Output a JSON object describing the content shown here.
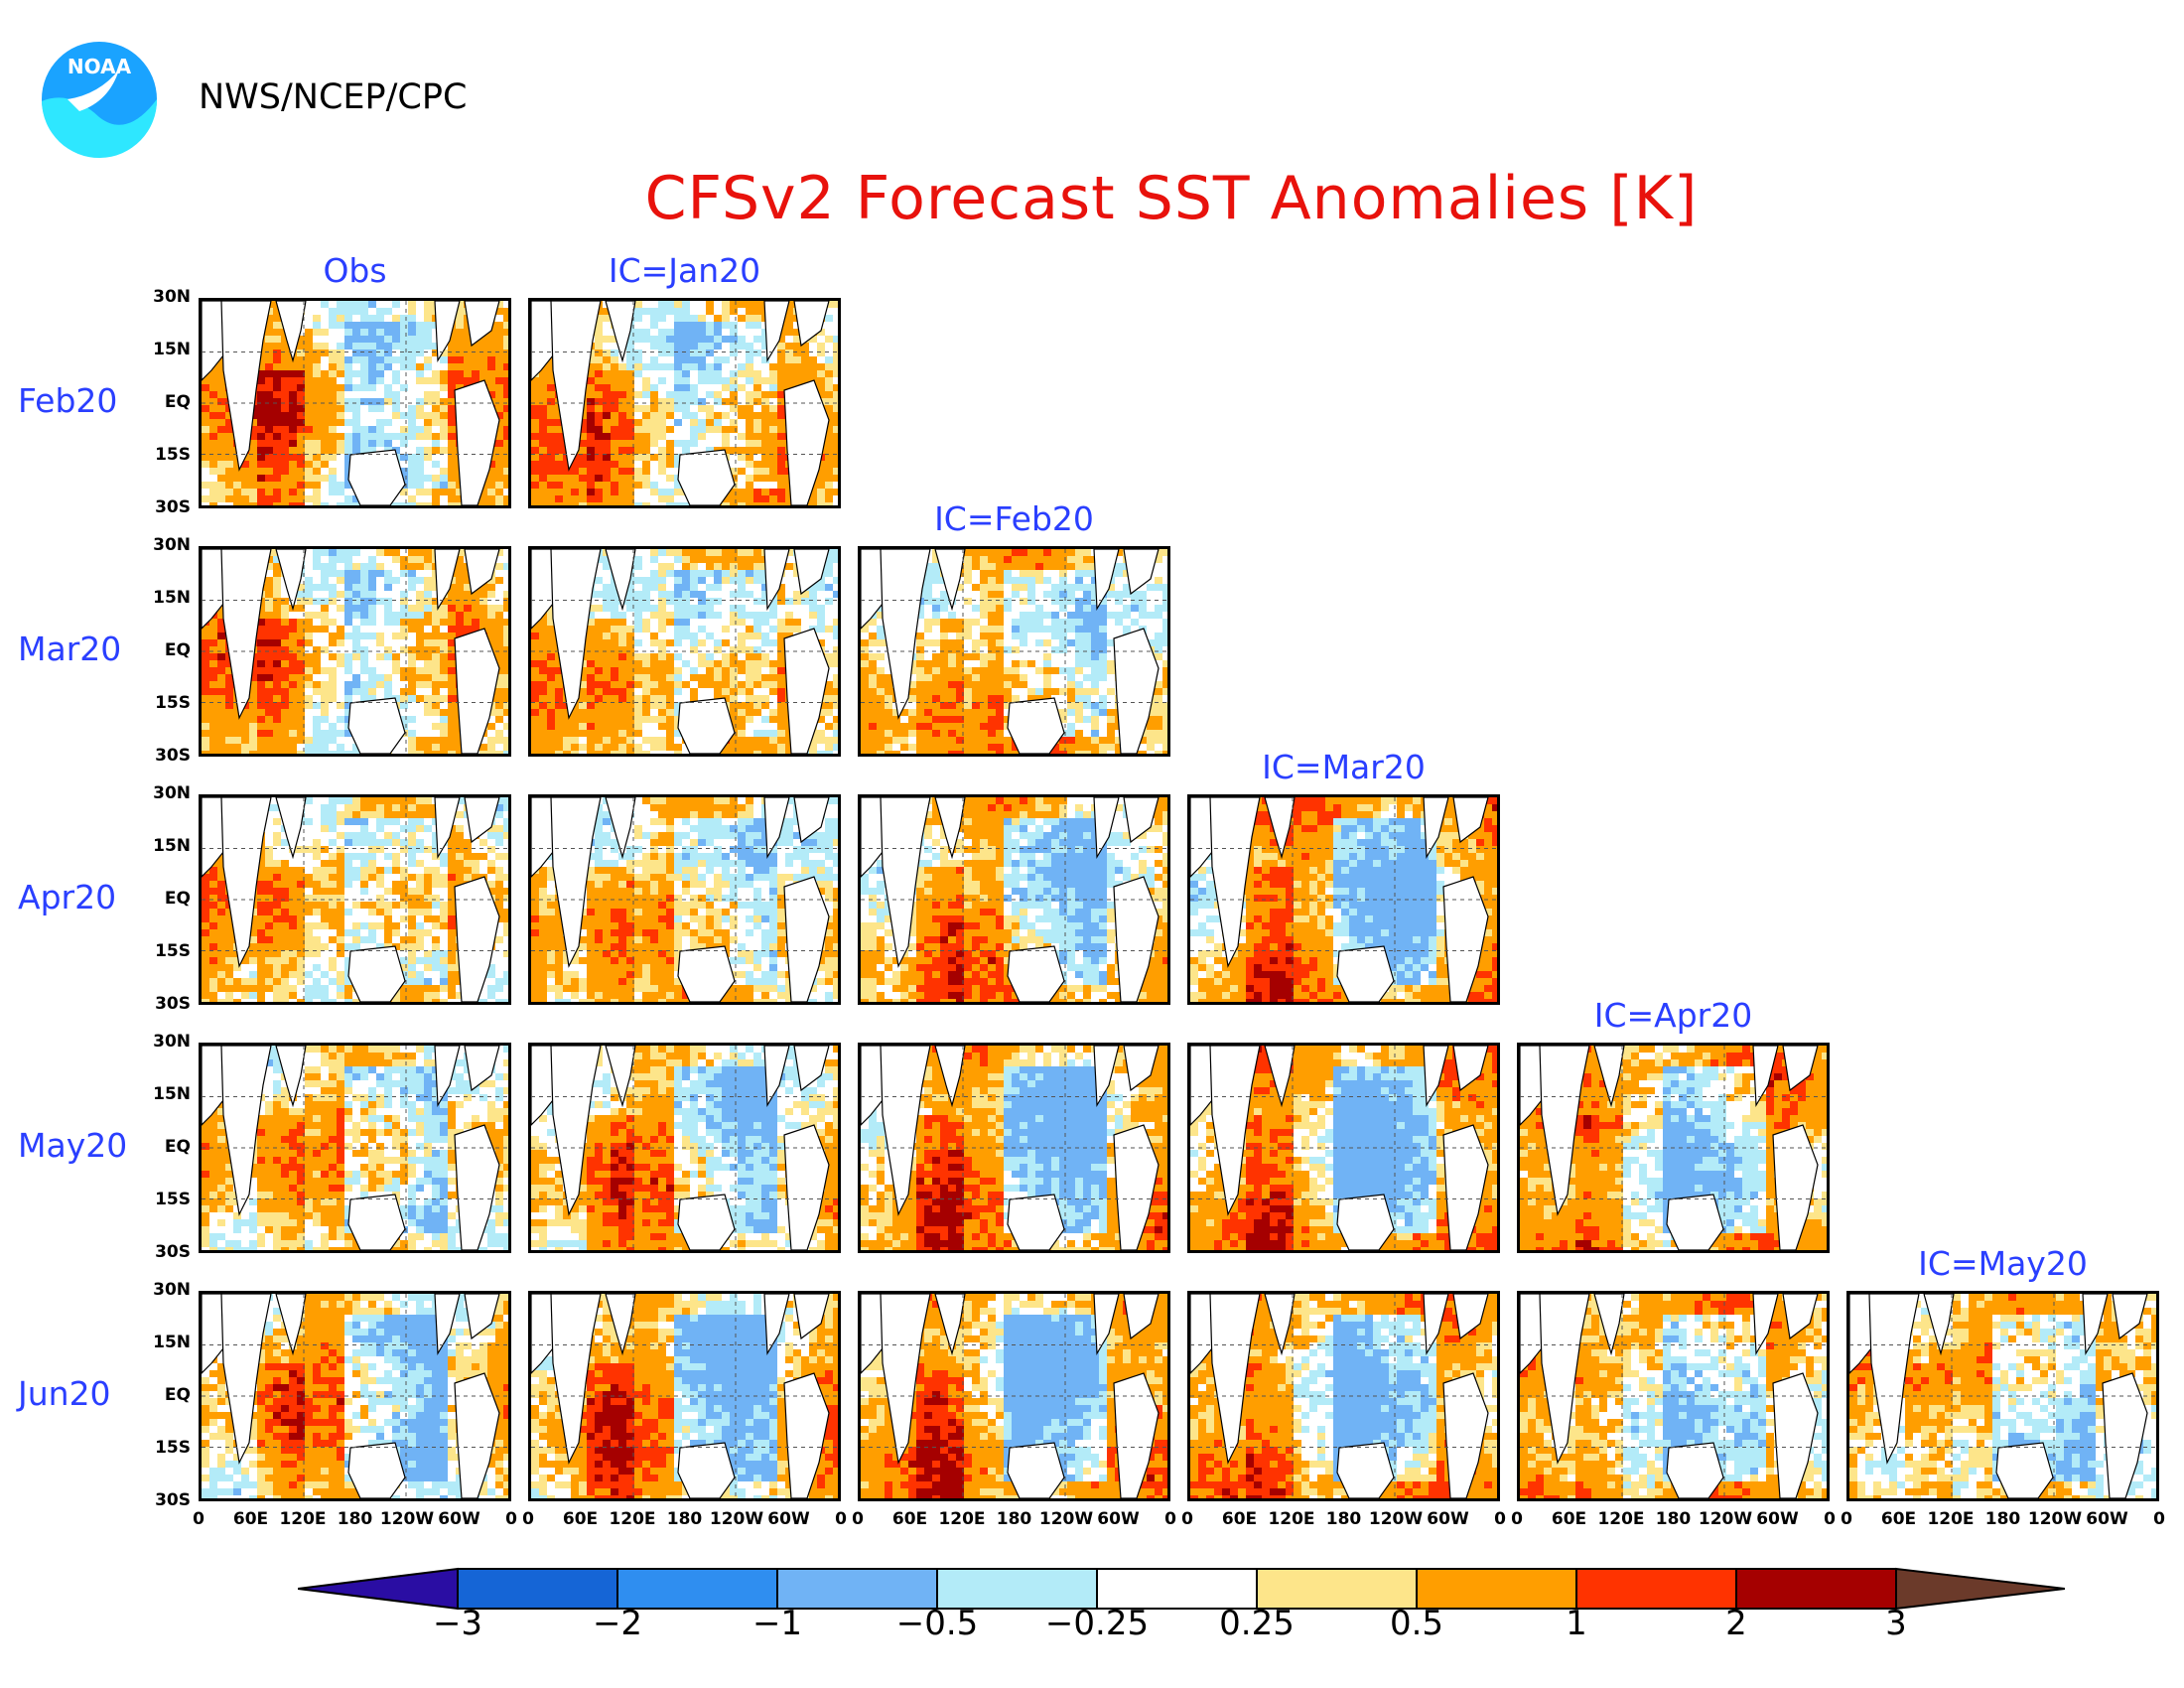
{
  "header": {
    "agency": "NWS/NCEP/CPC",
    "logo_text": "NOAA",
    "title": "CFSv2 Forecast SST Anomalies [K]"
  },
  "columns": [
    "Obs",
    "IC=Jan20",
    "IC=Feb20",
    "IC=Mar20",
    "IC=Apr20",
    "IC=May20"
  ],
  "rows": [
    "Feb20",
    "Mar20",
    "Apr20",
    "May20",
    "Jun20"
  ],
  "lat_ticks": [
    "30N",
    "15N",
    "EQ",
    "15S",
    "30S"
  ],
  "lon_ticks": [
    "0",
    "60E",
    "120E",
    "180",
    "120W",
    "60W",
    "0"
  ],
  "colorbar": {
    "levels": [
      "−3",
      "−2",
      "−1",
      "−0.5",
      "−0.25",
      "0.25",
      "0.5",
      "1",
      "2",
      "3"
    ],
    "colors": [
      "#2a0da3",
      "#1565d6",
      "#2f8ef0",
      "#70b3f5",
      "#b3ebf8",
      "#ffffff",
      "#fde58a",
      "#ff9e00",
      "#ff3300",
      "#a50000",
      "#6b3a2a"
    ]
  },
  "panel_colors": {
    "land": "#ffffff",
    "coast": "#000000",
    "grid": "#555555"
  }
}
